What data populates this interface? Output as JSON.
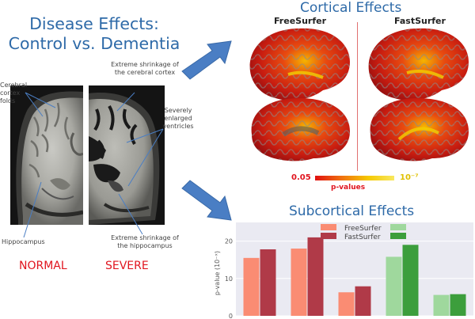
{
  "left_panel": {
    "title_line1": "Disease Effects:",
    "title_line2": "Control vs. Dementia",
    "annotations": {
      "cerebral_cortex_folds": "Cerebral cortex folds",
      "extreme_shrinkage_cortex": "Extreme shrinkage of the cerebral cortex",
      "severely_enlarged_ventricles": "Severely enlarged ventricles",
      "hippocampus": "Hippocampus",
      "extreme_shrinkage_hippocampus": "Extreme shrinkage of the hippocampus"
    },
    "label_normal": "NORMAL",
    "label_severe": "SEVERE"
  },
  "cortical": {
    "title": "Cortical Effects",
    "col_freesurfer": "FreeSurfer",
    "col_fastsurfer": "FastSurfer",
    "colorbar_min": "0.05",
    "colorbar_max": "10⁻⁷",
    "colorbar_label": "p-values"
  },
  "subcortical": {
    "title": "Subcortical Effects",
    "legend_freesurfer": "FreeSurfer",
    "legend_fastsurfer": "FastSurfer"
  },
  "colors": {
    "title_blue": "#2e6aa8",
    "arrow_blue": "#4a7ec4",
    "red_label": "#e0141e",
    "salmon": "#fa8c73",
    "crimson": "#b03a48",
    "light_green": "#9fd89d",
    "green": "#3c9e3c"
  },
  "chart_data": {
    "type": "bar",
    "ylabel": "p-value (10⁻ˣ)",
    "ylim": [
      0,
      25
    ],
    "yticks": [
      "0",
      "10",
      "20"
    ],
    "grid": true,
    "legend_placement": "top",
    "series": [
      {
        "name": "FreeSurfer",
        "values": [
          15.5,
          18.0,
          6.3,
          15.8,
          5.6
        ]
      },
      {
        "name": "FastSurfer",
        "values": [
          17.8,
          21.0,
          7.9,
          19.0,
          5.8
        ]
      }
    ],
    "bar_colors": [
      [
        "#fa8c73",
        "#b03a48"
      ],
      [
        "#fa8c73",
        "#b03a48"
      ],
      [
        "#fa8c73",
        "#b03a48"
      ],
      [
        "#9fd89d",
        "#3c9e3c"
      ],
      [
        "#9fd89d",
        "#3c9e3c"
      ]
    ]
  }
}
